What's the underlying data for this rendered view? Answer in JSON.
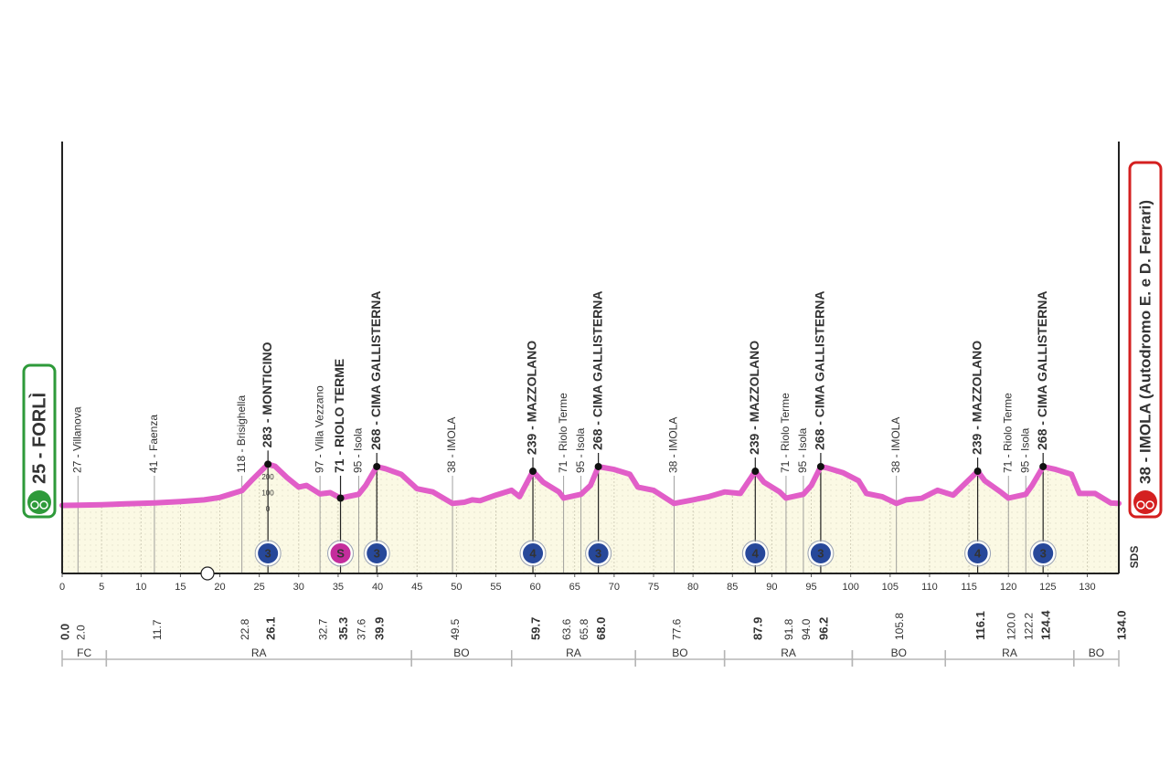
{
  "chart_data": {
    "type": "line",
    "x": [
      0,
      2,
      5,
      8,
      11.7,
      15,
      18,
      20,
      22.8,
      24,
      26.1,
      27,
      28.5,
      30,
      31,
      32.7,
      34,
      35.3,
      37.6,
      38.5,
      39.9,
      41,
      43,
      45,
      47,
      49.5,
      51,
      52,
      53,
      55,
      57,
      58,
      59.7,
      61,
      63,
      63.6,
      65.8,
      67,
      68,
      70,
      72,
      73,
      75,
      77.6,
      80,
      82,
      84,
      86,
      87.9,
      89,
      91,
      91.8,
      94,
      95,
      96.2,
      97,
      99,
      101,
      102,
      104,
      105.8,
      107,
      109,
      111,
      113,
      116.1,
      117,
      119,
      120,
      122.2,
      123,
      124.4,
      126,
      128,
      129,
      131,
      133,
      134
    ],
    "values": [
      25,
      27,
      30,
      35,
      41,
      50,
      60,
      75,
      118,
      180,
      283,
      270,
      200,
      140,
      150,
      97,
      105,
      71,
      95,
      150,
      268,
      255,
      220,
      130,
      110,
      38,
      45,
      60,
      55,
      90,
      120,
      80,
      239,
      170,
      110,
      71,
      95,
      150,
      268,
      250,
      220,
      140,
      120,
      38,
      60,
      80,
      110,
      100,
      239,
      170,
      110,
      71,
      95,
      150,
      268,
      260,
      230,
      180,
      100,
      80,
      38,
      60,
      70,
      120,
      90,
      239,
      180,
      110,
      71,
      95,
      150,
      268,
      250,
      220,
      100,
      100,
      40,
      38
    ],
    "color": "#e15ec8",
    "area_color": "#fbf9e4",
    "xlim": [
      0,
      134
    ],
    "ylim": [
      -400,
      2300
    ],
    "xticks": [
      0,
      5,
      10,
      15,
      20,
      25,
      30,
      35,
      40,
      45,
      50,
      55,
      60,
      65,
      70,
      75,
      80,
      85,
      90,
      95,
      100,
      105,
      110,
      115,
      120,
      125,
      130
    ],
    "yticks": [
      0,
      100,
      200
    ],
    "grid": true,
    "start": {
      "name": "25 - FORLÌ",
      "km": 0,
      "km_label": "0.0",
      "color": "#2e9a3a"
    },
    "finish": {
      "name": "38 - IMOLA (Autodromo E. e D. Ferrari)",
      "km": 134,
      "km_label": "134.0",
      "color": "#d42020"
    },
    "waypoints": [
      {
        "name": "27 - Villanova",
        "km": 2.0,
        "km_label": "2.0"
      },
      {
        "name": "41 - Faenza",
        "km": 11.7,
        "km_label": "11.7"
      },
      {
        "name": "118 - Brisighella",
        "km": 22.8,
        "km_label": "22.8"
      },
      {
        "name": "283 - MONTICINO",
        "km": 26.1,
        "km_label": "26.1",
        "strong": true,
        "badge": "3",
        "badge_color": "#27489a"
      },
      {
        "name": "97 - Villa Vezzano",
        "km": 32.7,
        "km_label": "32.7"
      },
      {
        "name": "71 - RIOLO TERME",
        "km": 35.3,
        "km_label": "35.3",
        "strong": true,
        "badge": "S",
        "badge_color": "#c42d9c"
      },
      {
        "name": "95 - Isola",
        "km": 37.6,
        "km_label": "37.6"
      },
      {
        "name": "268 - CIMA GALLISTERNA",
        "km": 39.9,
        "km_label": "39.9",
        "strong": true,
        "badge": "3",
        "badge_color": "#27489a"
      },
      {
        "name": "38 - IMOLA",
        "km": 49.5,
        "km_label": "49.5"
      },
      {
        "name": "239 - MAZZOLANO",
        "km": 59.7,
        "km_label": "59.7",
        "strong": true,
        "badge": "4",
        "badge_color": "#27489a"
      },
      {
        "name": "71 - Riolo Terme",
        "km": 63.6,
        "km_label": "63.6"
      },
      {
        "name": "95 - Isola",
        "km": 65.8,
        "km_label": "65.8"
      },
      {
        "name": "268 - CIMA GALLISTERNA",
        "km": 68.0,
        "km_label": "68.0",
        "strong": true,
        "badge": "3",
        "badge_color": "#27489a"
      },
      {
        "name": "38 - IMOLA",
        "km": 77.6,
        "km_label": "77.6"
      },
      {
        "name": "239 - MAZZOLANO",
        "km": 87.9,
        "km_label": "87.9",
        "strong": true,
        "badge": "4",
        "badge_color": "#27489a"
      },
      {
        "name": "71 - Riolo Terme",
        "km": 91.8,
        "km_label": "91.8"
      },
      {
        "name": "95 - Isola",
        "km": 94.0,
        "km_label": "94.0"
      },
      {
        "name": "268 - CIMA GALLISTERNA",
        "km": 96.2,
        "km_label": "96.2",
        "strong": true,
        "badge": "3",
        "badge_color": "#27489a"
      },
      {
        "name": "38 - IMOLA",
        "km": 105.8,
        "km_label": "105.8"
      },
      {
        "name": "239 - MAZZOLANO",
        "km": 116.1,
        "km_label": "116.1",
        "strong": true,
        "badge": "4",
        "badge_color": "#27489a"
      },
      {
        "name": "71 - Riolo Terme",
        "km": 120.0,
        "km_label": "120.0"
      },
      {
        "name": "95 - Isola",
        "km": 122.2,
        "km_label": "122.2"
      },
      {
        "name": "268 - CIMA GALLISTERNA",
        "km": 124.4,
        "km_label": "124.4",
        "strong": true,
        "badge": "3",
        "badge_color": "#27489a"
      }
    ],
    "regions": [
      {
        "name": "FC",
        "from": 0,
        "to": 5.6
      },
      {
        "name": "RA",
        "from": 5.6,
        "to": 44.3
      },
      {
        "name": "BO",
        "from": 44.3,
        "to": 57.0
      },
      {
        "name": "RA",
        "from": 57.0,
        "to": 72.7
      },
      {
        "name": "BO",
        "from": 72.7,
        "to": 84.0
      },
      {
        "name": "RA",
        "from": 84.0,
        "to": 100.2
      },
      {
        "name": "BO",
        "from": 100.2,
        "to": 112.0
      },
      {
        "name": "RA",
        "from": 112.0,
        "to": 128.3
      },
      {
        "name": "BO",
        "from": 128.3,
        "to": 134
      }
    ],
    "sponsor": "SDS"
  }
}
